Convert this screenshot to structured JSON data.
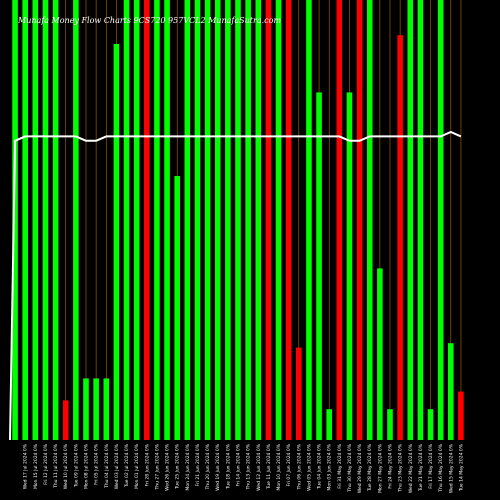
{
  "chart_data": {
    "type": "bar",
    "title": "Munafa Money Flow Charts 9CS720                    957VCL2                    MunafaSutra.com",
    "background": "#000000",
    "colors": {
      "up": "#00ff00",
      "down": "#ff0000",
      "line": "#ffffff",
      "guide": "#b36a00"
    },
    "ylim": [
      0,
      100
    ],
    "values": [
      100,
      100,
      100,
      100,
      100,
      9,
      100,
      14,
      14,
      14,
      90,
      100,
      100,
      100,
      100,
      100,
      60,
      100,
      100,
      100,
      100,
      100,
      100,
      100,
      100,
      100,
      100,
      100,
      21,
      100,
      79,
      7,
      100,
      79,
      100,
      100,
      39,
      7,
      92,
      100,
      100,
      7,
      100,
      22,
      11
    ],
    "directions": [
      "up",
      "up",
      "up",
      "up",
      "up",
      "down",
      "up",
      "up",
      "up",
      "up",
      "up",
      "up",
      "up",
      "down",
      "up",
      "up",
      "up",
      "up",
      "up",
      "up",
      "up",
      "up",
      "up",
      "up",
      "up",
      "down",
      "up",
      "down",
      "down",
      "up",
      "up",
      "up",
      "down",
      "up",
      "down",
      "up",
      "up",
      "up",
      "down",
      "up",
      "up",
      "up",
      "up",
      "up",
      "down"
    ],
    "line_values": [
      68,
      69,
      69,
      69,
      69,
      69,
      69,
      68,
      68,
      69,
      69,
      69,
      69,
      69,
      69,
      69,
      69,
      69,
      69,
      69,
      69,
      69,
      69,
      69,
      69,
      69,
      69,
      69,
      69,
      69,
      69,
      69,
      69,
      68,
      68,
      69,
      69,
      69,
      69,
      69,
      69,
      69,
      69,
      70,
      69
    ],
    "tick_labels": [
      "",
      "Wed 17 Jul 2024 0%",
      "Mon 15 Jul 2024 0%",
      "Fri 12 Jul 2024 0%",
      "Thu 11 Jul 2024 0%",
      "Wed 10 Jul 2024 0%",
      "Tue 09 Jul 2024 0%",
      "Mon 08 Jul 2024 0%",
      "Fri 05 Jul 2024 0%",
      "Thu 04 Jul 2024 0%",
      "Wed 03 Jul 2024 0%",
      "Tue 02 Jul 2024 0%",
      "Mon 01 Jul 2024 0%",
      "Fri 28 Jun 2024 0%",
      "Thu 27 Jun 2024 0%",
      "Wed 26 Jun 2024 0%",
      "Tue 25 Jun 2024 0%",
      "Mon 24 Jun 2024 0%",
      "Fri 21 Jun 2024 0%",
      "Thu 20 Jun 2024 0%",
      "Wed 19 Jun 2024 0%",
      "Tue 18 Jun 2024 0%",
      "Fri 14 Jun 2024 0%",
      "Thu 13 Jun 2024 0%",
      "Wed 12 Jun 2024 0%",
      "Tue 11 Jun 2024 0%",
      "Mon 10 Jun 2024 0%",
      "Fri 07 Jun 2024 0%",
      "Thu 06 Jun 2024 0%",
      "Wed 05 Jun 2024 0%",
      "Tue 04 Jun 2024 0%",
      "Mon 03 Jun 2024 0%",
      "Fri 31 May 2024 0%",
      "Thu 30 May 2024 0%",
      "Wed 29 May 2024 0%",
      "Tue 28 May 2024 0%",
      "Mon 27 May 2024 0%",
      "Fri 24 May 2024 0%",
      "Thu 23 May 2024 0%",
      "Wed 22 May 2024 0%",
      "Tue 21 May 2024 0%",
      "Fri 17 May 2024 0%",
      "Thu 16 May 2024 0%",
      "Wed 15 May 2024 0%",
      "Tue 14 May 2024 0%"
    ]
  }
}
